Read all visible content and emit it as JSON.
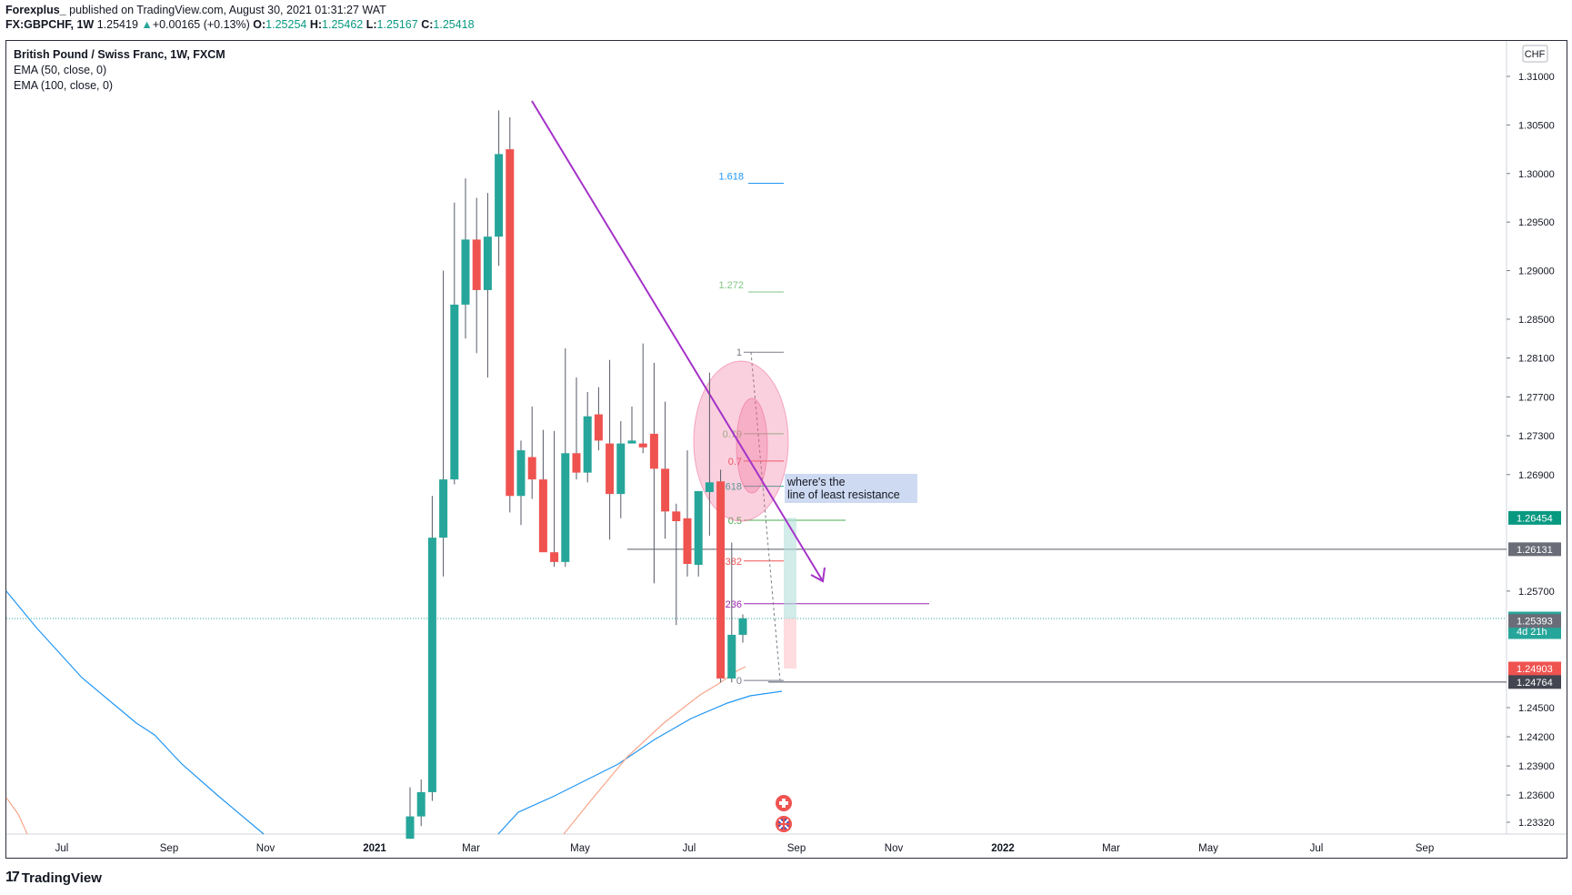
{
  "header": {
    "author": "Forexplus_",
    "published": "published on TradingView.com, August 30, 2021 01:31:27 WAT",
    "symbol": "FX:GBPCHF, 1W",
    "last": "1.25419",
    "change": "+0.00165 (+0.13%)",
    "o_label": "O:",
    "o_value": "1.25254",
    "h_label": "H:",
    "h_value": "1.25462",
    "l_label": "L:",
    "l_value": "1.25167",
    "c_label": "C:",
    "c_value": "1.25418"
  },
  "legend": {
    "title": "British Pound / Swiss Franc, 1W, FXCM",
    "ema1": "EMA (50, close, 0)",
    "ema2": "EMA (100, close, 0)"
  },
  "footer": {
    "brand": "TradingView",
    "logo": "17"
  },
  "colors": {
    "up": "#26a69a",
    "down": "#ef5350",
    "ema50": "#f7a58a",
    "ema100": "#2196f3",
    "trend": "#a432c8",
    "pink": "#f06292"
  },
  "annotation": {
    "line1": "where's the",
    "line2": "line of least resistance"
  },
  "currency": "CHF",
  "chart_data": {
    "type": "candlestick",
    "title": "British Pound / Swiss Franc, 1W, FXCM",
    "y_ticks": [
      "1.31000",
      "1.30500",
      "1.30000",
      "1.29500",
      "1.29000",
      "1.28500",
      "1.28100",
      "1.27700",
      "1.27300",
      "1.26900",
      "1.25700",
      "1.24500",
      "1.24200",
      "1.23900",
      "1.23600",
      "1.23320"
    ],
    "ylim": [
      1.2315,
      1.3124
    ],
    "x_ticks": [
      "Jul",
      "Sep",
      "Nov",
      "2021",
      "Mar",
      "May",
      "Jul",
      "Sep",
      "Nov",
      "2022",
      "Mar",
      "May",
      "Jul",
      "Sep"
    ],
    "price_labels": [
      {
        "text": "1.26454",
        "value": 1.26454,
        "color": "#089981"
      },
      {
        "text": "1.26131",
        "value": 1.26131,
        "color": "#6a6d78"
      },
      {
        "text": "1.25418",
        "value": 1.25418,
        "color": "#26a69a",
        "sub": "4d 21h"
      },
      {
        "text": "1.25393",
        "value": 1.25393,
        "color": "#6a6d78"
      },
      {
        "text": "1.24903",
        "value": 1.24903,
        "color": "#ef5350"
      },
      {
        "text": "1.24764",
        "value": 1.24764,
        "color": "#434651"
      }
    ],
    "fib_retracement": [
      {
        "label": "1",
        "value": 1.2816
      },
      {
        "label": "0.79",
        "value": 1.2732
      },
      {
        "label": "0.7",
        "value": 1.2704
      },
      {
        "label": "0.618",
        "value": 1.2678
      },
      {
        "label": "0.5",
        "value": 1.2643
      },
      {
        "label": "0.382",
        "value": 1.2601
      },
      {
        "label": "0.236",
        "value": 1.2557
      },
      {
        "label": "0",
        "value": 1.2478
      }
    ],
    "fib_extension": [
      {
        "label": "1.618",
        "value": 1.299
      },
      {
        "label": "1.272",
        "value": 1.2878
      }
    ],
    "candles": [
      {
        "x": "2021-01-31",
        "o": 1.2315,
        "h": 1.2368,
        "l": 1.2315,
        "c": 1.2338
      },
      {
        "x": "2021-02-07",
        "o": 1.2338,
        "h": 1.2376,
        "l": 1.2328,
        "c": 1.2363
      },
      {
        "x": "2021-02-14",
        "o": 1.2363,
        "h": 1.2668,
        "l": 1.2354,
        "c": 1.2625
      },
      {
        "x": "2021-02-21",
        "o": 1.2625,
        "h": 1.29,
        "l": 1.2585,
        "c": 1.2685
      },
      {
        "x": "2021-02-28",
        "o": 1.2685,
        "h": 1.297,
        "l": 1.268,
        "c": 1.2865
      },
      {
        "x": "2021-03-07",
        "o": 1.2865,
        "h": 1.2995,
        "l": 1.283,
        "c": 1.2932
      },
      {
        "x": "2021-03-14",
        "o": 1.2932,
        "h": 1.2975,
        "l": 1.2815,
        "c": 1.288
      },
      {
        "x": "2021-03-21",
        "o": 1.288,
        "h": 1.298,
        "l": 1.279,
        "c": 1.2935
      },
      {
        "x": "2021-03-28",
        "o": 1.2935,
        "h": 1.3065,
        "l": 1.2905,
        "c": 1.302
      },
      {
        "x": "2021-04-04",
        "o": 1.3025,
        "h": 1.3058,
        "l": 1.2651,
        "c": 1.2668
      },
      {
        "x": "2021-04-11",
        "o": 1.2668,
        "h": 1.2725,
        "l": 1.2638,
        "c": 1.2715
      },
      {
        "x": "2021-04-18",
        "o": 1.2708,
        "h": 1.276,
        "l": 1.2665,
        "c": 1.2685
      },
      {
        "x": "2021-04-25",
        "o": 1.2685,
        "h": 1.2736,
        "l": 1.2612,
        "c": 1.261
      },
      {
        "x": "2021-05-02",
        "o": 1.261,
        "h": 1.2735,
        "l": 1.2595,
        "c": 1.26
      },
      {
        "x": "2021-05-09",
        "o": 1.26,
        "h": 1.282,
        "l": 1.2595,
        "c": 1.2712
      },
      {
        "x": "2021-05-16",
        "o": 1.2712,
        "h": 1.279,
        "l": 1.2685,
        "c": 1.2692
      },
      {
        "x": "2021-05-23",
        "o": 1.2692,
        "h": 1.2775,
        "l": 1.2682,
        "c": 1.275
      },
      {
        "x": "2021-05-30",
        "o": 1.2752,
        "h": 1.278,
        "l": 1.2715,
        "c": 1.2725
      },
      {
        "x": "2021-06-06",
        "o": 1.2722,
        "h": 1.2808,
        "l": 1.2623,
        "c": 1.267
      },
      {
        "x": "2021-06-13",
        "o": 1.267,
        "h": 1.2745,
        "l": 1.2645,
        "c": 1.2722
      },
      {
        "x": "2021-06-20",
        "o": 1.2722,
        "h": 1.276,
        "l": 1.2722,
        "c": 1.2725
      },
      {
        "x": "2021-06-27",
        "o": 1.2722,
        "h": 1.2825,
        "l": 1.2712,
        "c": 1.2718
      },
      {
        "x": "2021-07-04",
        "o": 1.2732,
        "h": 1.2805,
        "l": 1.2578,
        "c": 1.2696
      },
      {
        "x": "2021-07-11",
        "o": 1.2696,
        "h": 1.2765,
        "l": 1.2624,
        "c": 1.2652
      },
      {
        "x": "2021-07-18",
        "o": 1.2652,
        "h": 1.266,
        "l": 1.2535,
        "c": 1.2642
      },
      {
        "x": "2021-07-25",
        "o": 1.2645,
        "h": 1.2715,
        "l": 1.2585,
        "c": 1.2598
      },
      {
        "x": "2021-08-01",
        "o": 1.2597,
        "h": 1.2672,
        "l": 1.2585,
        "c": 1.2673
      },
      {
        "x": "2021-08-08",
        "o": 1.2672,
        "h": 1.2795,
        "l": 1.2627,
        "c": 1.2682
      },
      {
        "x": "2021-08-15",
        "o": 1.2683,
        "h": 1.2695,
        "l": 1.2476,
        "c": 1.248
      },
      {
        "x": "2021-08-22",
        "o": 1.248,
        "h": 1.262,
        "l": 1.2476,
        "c": 1.2525
      },
      {
        "x": "2021-08-29",
        "o": 1.2525,
        "h": 1.2546,
        "l": 1.2517,
        "c": 1.2542
      }
    ]
  }
}
